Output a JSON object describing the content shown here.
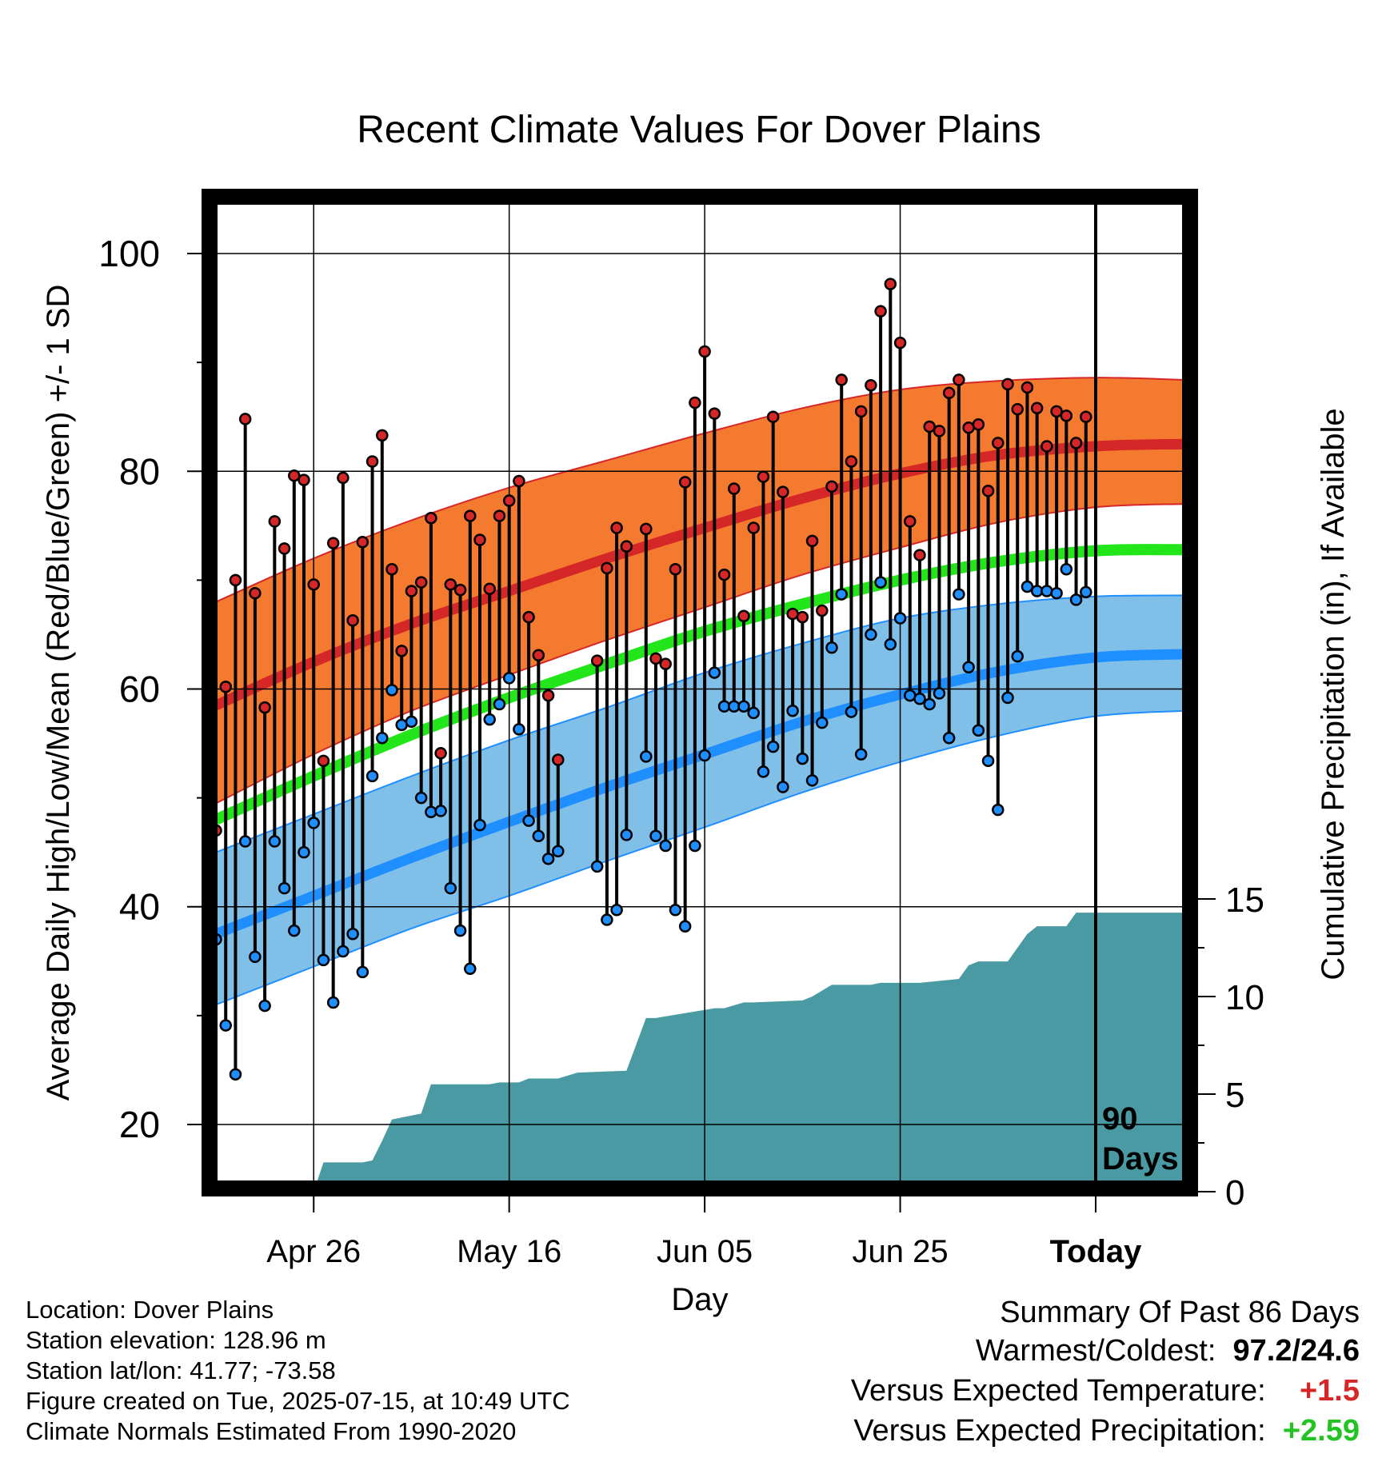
{
  "title": "Recent Climate Values For Dover Plains",
  "info": {
    "location": "Location: Dover Plains",
    "elevation": "Station elevation: 128.96 m",
    "latlon": "Station lat/lon: 41.77; -73.58",
    "created": "Figure created on Tue, 2025-07-15, at 10:49 UTC",
    "normals": "Climate Normals Estimated From 1990-2020"
  },
  "summary": {
    "heading": "Summary Of Past 86 Days",
    "warm_label": "Warmest/Coldest:",
    "warm_value": "97.2/24.6",
    "temp_label": "Versus Expected Temperature:",
    "temp_value": "+1.5",
    "precip_label": "Versus Expected Precipitation:",
    "precip_value": "+2.59"
  },
  "colors": {
    "high": "#d62728",
    "high_band": "#f47a2f",
    "low": "#1f8fff",
    "low_band": "#80bfe8",
    "mean": "#22e61a",
    "precip": "#4a9aa3"
  },
  "chart_data": {
    "type": "line",
    "title": "Recent Climate Values For Dover Plains",
    "xlabel": "Day",
    "ylabel": "Average Daily High/Low/Mean (Red/Blue/Green) +/- 1 SD",
    "y2label": "Cumulative Precipitation (in), If Available",
    "xlim": [
      "2025-04-16",
      "2025-07-24"
    ],
    "ylim": [
      15,
      102.5
    ],
    "y2lim": [
      0,
      15
    ],
    "xticks": [
      {
        "date": "2025-04-26",
        "label": "Apr 26"
      },
      {
        "date": "2025-05-16",
        "label": "May 16"
      },
      {
        "date": "2025-06-05",
        "label": "Jun 05"
      },
      {
        "date": "2025-06-25",
        "label": "Jun 25"
      },
      {
        "date": "2025-07-15",
        "label": "Today"
      }
    ],
    "yticks": [
      20,
      40,
      60,
      80,
      100
    ],
    "y2ticks": [
      0,
      5,
      10,
      15
    ],
    "today": "2025-07-15",
    "today_annotation": [
      "90",
      "Days"
    ],
    "grid": true,
    "normals": {
      "dates": [
        "2025-04-16",
        "2025-04-26",
        "2025-05-06",
        "2025-05-16",
        "2025-05-26",
        "2025-06-05",
        "2025-06-15",
        "2025-06-25",
        "2025-07-05",
        "2025-07-15",
        "2025-07-24"
      ],
      "high": [
        58.5,
        62.5,
        66,
        69,
        72,
        74.8,
        77.5,
        79.8,
        81.5,
        82.3,
        82.5
      ],
      "high_upper": [
        68,
        72,
        75.5,
        78.5,
        81,
        83.5,
        85.8,
        87.5,
        88.3,
        88.6,
        88.4
      ],
      "high_lower": [
        49.5,
        54,
        58,
        61.3,
        64.5,
        67.5,
        70.5,
        73,
        75.3,
        76.7,
        77
      ],
      "mean": [
        48,
        52,
        55.8,
        59.2,
        62.3,
        65.3,
        67.8,
        70,
        71.7,
        72.7,
        72.8
      ],
      "low": [
        37.5,
        41,
        44.5,
        47.8,
        51,
        54,
        57,
        59.5,
        61.6,
        62.9,
        63.2
      ],
      "low_upper": [
        45,
        48.5,
        52,
        55.3,
        58.3,
        61.5,
        64.2,
        66.5,
        67.8,
        68.5,
        68.6
      ],
      "low_lower": [
        31,
        34.5,
        38,
        41,
        44.2,
        47.3,
        50.5,
        53.3,
        55.7,
        57.5,
        58
      ]
    },
    "observed": [
      {
        "date": "2025-04-16",
        "high": 47.0,
        "low": 37.0
      },
      {
        "date": "2025-04-17",
        "high": 60.2,
        "low": 29.1
      },
      {
        "date": "2025-04-18",
        "high": 70.0,
        "low": 24.6
      },
      {
        "date": "2025-04-19",
        "high": 84.8,
        "low": 46.0
      },
      {
        "date": "2025-04-20",
        "high": 68.8,
        "low": 35.4
      },
      {
        "date": "2025-04-21",
        "high": 58.3,
        "low": 30.9
      },
      {
        "date": "2025-04-22",
        "high": 75.4,
        "low": 46.0
      },
      {
        "date": "2025-04-23",
        "high": 72.9,
        "low": 41.7
      },
      {
        "date": "2025-04-24",
        "high": 79.6,
        "low": 37.8
      },
      {
        "date": "2025-04-25",
        "high": 79.2,
        "low": 45.0
      },
      {
        "date": "2025-04-26",
        "high": 69.6,
        "low": 47.7
      },
      {
        "date": "2025-04-27",
        "high": 53.4,
        "low": 35.1
      },
      {
        "date": "2025-04-28",
        "high": 73.4,
        "low": 31.2
      },
      {
        "date": "2025-04-29",
        "high": 79.4,
        "low": 35.9
      },
      {
        "date": "2025-04-30",
        "high": 66.3,
        "low": 37.5
      },
      {
        "date": "2025-05-01",
        "high": 73.5,
        "low": 34.0
      },
      {
        "date": "2025-05-02",
        "high": 80.9,
        "low": 52.0
      },
      {
        "date": "2025-05-03",
        "high": 83.3,
        "low": 55.5
      },
      {
        "date": "2025-05-04",
        "high": 71.0,
        "low": 59.9
      },
      {
        "date": "2025-05-05",
        "high": 63.5,
        "low": 56.7
      },
      {
        "date": "2025-05-06",
        "high": 69.0,
        "low": 57.0
      },
      {
        "date": "2025-05-07",
        "high": 69.8,
        "low": 50.0
      },
      {
        "date": "2025-05-08",
        "high": 75.7,
        "low": 48.7
      },
      {
        "date": "2025-05-09",
        "high": 54.1,
        "low": 48.8
      },
      {
        "date": "2025-05-10",
        "high": 69.6,
        "low": 41.7
      },
      {
        "date": "2025-05-11",
        "high": 69.1,
        "low": 37.8
      },
      {
        "date": "2025-05-12",
        "high": 75.9,
        "low": 34.3
      },
      {
        "date": "2025-05-13",
        "high": 73.7,
        "low": 47.5
      },
      {
        "date": "2025-05-14",
        "high": 69.2,
        "low": 57.2
      },
      {
        "date": "2025-05-15",
        "high": 75.9,
        "low": 58.6
      },
      {
        "date": "2025-05-16",
        "high": 77.3,
        "low": 61.0
      },
      {
        "date": "2025-05-17",
        "high": 79.1,
        "low": 56.3
      },
      {
        "date": "2025-05-18",
        "high": 66.6,
        "low": 47.9
      },
      {
        "date": "2025-05-19",
        "high": 63.1,
        "low": 46.5
      },
      {
        "date": "2025-05-20",
        "high": 59.4,
        "low": 44.4
      },
      {
        "date": "2025-05-21",
        "high": 53.5,
        "low": 45.1
      },
      {
        "date": "2025-05-25",
        "high": 62.6,
        "low": 43.7
      },
      {
        "date": "2025-05-26",
        "high": 71.1,
        "low": 38.8
      },
      {
        "date": "2025-05-27",
        "high": 74.8,
        "low": 39.7
      },
      {
        "date": "2025-05-28",
        "high": 73.1,
        "low": 46.6
      },
      {
        "date": "2025-05-30",
        "high": 74.7,
        "low": 53.8
      },
      {
        "date": "2025-05-31",
        "high": 62.8,
        "low": 46.5
      },
      {
        "date": "2025-06-01",
        "high": 62.3,
        "low": 45.6
      },
      {
        "date": "2025-06-02",
        "high": 71.0,
        "low": 39.7
      },
      {
        "date": "2025-06-03",
        "high": 79.0,
        "low": 38.2
      },
      {
        "date": "2025-06-04",
        "high": 86.3,
        "low": 45.6
      },
      {
        "date": "2025-06-05",
        "high": 91.0,
        "low": 53.9
      },
      {
        "date": "2025-06-06",
        "high": 85.3,
        "low": 61.5
      },
      {
        "date": "2025-06-07",
        "high": 70.5,
        "low": 58.4
      },
      {
        "date": "2025-06-08",
        "high": 78.4,
        "low": 58.4
      },
      {
        "date": "2025-06-09",
        "high": 66.7,
        "low": 58.4
      },
      {
        "date": "2025-06-10",
        "high": 74.8,
        "low": 57.8
      },
      {
        "date": "2025-06-11",
        "high": 79.5,
        "low": 52.4
      },
      {
        "date": "2025-06-12",
        "high": 85.0,
        "low": 54.7
      },
      {
        "date": "2025-06-13",
        "high": 78.1,
        "low": 51.0
      },
      {
        "date": "2025-06-14",
        "high": 66.9,
        "low": 58.0
      },
      {
        "date": "2025-06-15",
        "high": 66.6,
        "low": 53.6
      },
      {
        "date": "2025-06-16",
        "high": 73.6,
        "low": 51.6
      },
      {
        "date": "2025-06-17",
        "high": 67.2,
        "low": 56.9
      },
      {
        "date": "2025-06-18",
        "high": 78.6,
        "low": 63.8
      },
      {
        "date": "2025-06-19",
        "high": 88.4,
        "low": 68.7
      },
      {
        "date": "2025-06-20",
        "high": 80.9,
        "low": 57.9
      },
      {
        "date": "2025-06-21",
        "high": 85.5,
        "low": 54.0
      },
      {
        "date": "2025-06-22",
        "high": 87.9,
        "low": 65.0
      },
      {
        "date": "2025-06-23",
        "high": 94.7,
        "low": 69.8
      },
      {
        "date": "2025-06-24",
        "high": 97.2,
        "low": 64.1
      },
      {
        "date": "2025-06-25",
        "high": 91.8,
        "low": 66.5
      },
      {
        "date": "2025-06-26",
        "high": 75.4,
        "low": 59.4
      },
      {
        "date": "2025-06-27",
        "high": 72.3,
        "low": 59.1
      },
      {
        "date": "2025-06-28",
        "high": 84.1,
        "low": 58.6
      },
      {
        "date": "2025-06-29",
        "high": 83.7,
        "low": 59.6
      },
      {
        "date": "2025-06-30",
        "high": 87.2,
        "low": 55.5
      },
      {
        "date": "2025-07-01",
        "high": 88.4,
        "low": 68.7
      },
      {
        "date": "2025-07-02",
        "high": 84.0,
        "low": 62.0
      },
      {
        "date": "2025-07-03",
        "high": 84.3,
        "low": 56.2
      },
      {
        "date": "2025-07-04",
        "high": 78.2,
        "low": 53.4
      },
      {
        "date": "2025-07-05",
        "high": 82.6,
        "low": 48.9
      },
      {
        "date": "2025-07-06",
        "high": 88.0,
        "low": 59.2
      },
      {
        "date": "2025-07-07",
        "high": 85.7,
        "low": 63.0
      },
      {
        "date": "2025-07-08",
        "high": 87.7,
        "low": 69.4
      },
      {
        "date": "2025-07-09",
        "high": 85.8,
        "low": 69.0
      },
      {
        "date": "2025-07-10",
        "high": 82.3,
        "low": 69.0
      },
      {
        "date": "2025-07-11",
        "high": 85.5,
        "low": 68.8
      },
      {
        "date": "2025-07-12",
        "high": 85.1,
        "low": 71.0
      },
      {
        "date": "2025-07-13",
        "high": 82.6,
        "low": 68.2
      },
      {
        "date": "2025-07-14",
        "high": 85.0,
        "low": 68.9
      }
    ],
    "precip_cumulative": {
      "dates": [
        "2025-04-16",
        "2025-04-26",
        "2025-04-27",
        "2025-05-01",
        "2025-05-02",
        "2025-05-03",
        "2025-05-04",
        "2025-05-05",
        "2025-05-07",
        "2025-05-08",
        "2025-05-09",
        "2025-05-14",
        "2025-05-15",
        "2025-05-17",
        "2025-05-18",
        "2025-05-21",
        "2025-05-23",
        "2025-05-28",
        "2025-05-30",
        "2025-05-31",
        "2025-06-06",
        "2025-06-07",
        "2025-06-09",
        "2025-06-10",
        "2025-06-15",
        "2025-06-16",
        "2025-06-18",
        "2025-06-22",
        "2025-06-23",
        "2025-06-27",
        "2025-07-01",
        "2025-07-02",
        "2025-07-03",
        "2025-07-06",
        "2025-07-07",
        "2025-07-08",
        "2025-07-09",
        "2025-07-12",
        "2025-07-13",
        "2025-07-24"
      ],
      "values": [
        0,
        0,
        1.5,
        1.5,
        1.6,
        2.6,
        3.7,
        3.8,
        4.0,
        5.5,
        5.5,
        5.5,
        5.6,
        5.6,
        5.8,
        5.8,
        6.1,
        6.2,
        8.9,
        8.9,
        9.4,
        9.4,
        9.7,
        9.7,
        9.8,
        10.0,
        10.6,
        10.6,
        10.7,
        10.7,
        10.9,
        11.6,
        11.8,
        11.8,
        12.5,
        13.2,
        13.6,
        13.6,
        14.3,
        14.3
      ]
    }
  }
}
